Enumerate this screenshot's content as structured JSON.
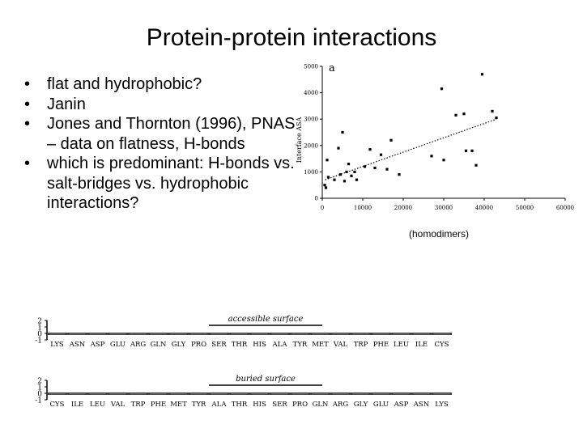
{
  "title": "Protein-protein interactions",
  "bullets": [
    {
      "text": "flat and hydrophobic?"
    },
    {
      "text": "Janin"
    },
    {
      "text": "Jones and Thornton (1996), PNAS – data on flatness, H-bonds"
    },
    {
      "text": "which is predominant: H-bonds vs. salt-bridges vs. hydrophobic interactions?"
    }
  ],
  "bullet_char": "•",
  "scatter": {
    "panel_label": "a",
    "caption": "(homodimers)"
  },
  "chart_data": [
    {
      "type": "scatter",
      "ylabel": "Interface ASA",
      "xlabel": "",
      "xlim": [
        0,
        60000
      ],
      "ylim": [
        0,
        5000
      ],
      "xticks": [
        "0",
        "10000",
        "20000",
        "30000",
        "40000",
        "50000",
        "60000"
      ],
      "yticks": [
        "0",
        "1000",
        "2000",
        "3000",
        "4000",
        "5000"
      ],
      "points": [
        {
          "x": 600,
          "y": 500
        },
        {
          "x": 900,
          "y": 400
        },
        {
          "x": 1200,
          "y": 1450
        },
        {
          "x": 1500,
          "y": 800
        },
        {
          "x": 3000,
          "y": 700
        },
        {
          "x": 4000,
          "y": 1900
        },
        {
          "x": 4500,
          "y": 900
        },
        {
          "x": 5000,
          "y": 2500
        },
        {
          "x": 5500,
          "y": 650
        },
        {
          "x": 6000,
          "y": 1000
        },
        {
          "x": 6500,
          "y": 1300
        },
        {
          "x": 7200,
          "y": 850
        },
        {
          "x": 8000,
          "y": 1000
        },
        {
          "x": 8500,
          "y": 700
        },
        {
          "x": 10500,
          "y": 1200
        },
        {
          "x": 11800,
          "y": 1850
        },
        {
          "x": 13000,
          "y": 1150
        },
        {
          "x": 14500,
          "y": 1650
        },
        {
          "x": 16000,
          "y": 1100
        },
        {
          "x": 17000,
          "y": 2200
        },
        {
          "x": 19000,
          "y": 900
        },
        {
          "x": 27000,
          "y": 1600
        },
        {
          "x": 29500,
          "y": 4150
        },
        {
          "x": 30000,
          "y": 1450
        },
        {
          "x": 33000,
          "y": 3150
        },
        {
          "x": 35000,
          "y": 3200
        },
        {
          "x": 35500,
          "y": 1800
        },
        {
          "x": 37000,
          "y": 1800
        },
        {
          "x": 38000,
          "y": 1250
        },
        {
          "x": 39500,
          "y": 4700
        },
        {
          "x": 42000,
          "y": 3300
        },
        {
          "x": 43000,
          "y": 3050
        }
      ],
      "trendline": {
        "x": [
          700,
          43000
        ],
        "y": [
          700,
          3000
        ],
        "style": "dotted"
      }
    },
    {
      "type": "bar",
      "title": "accessible surface",
      "ylim": [
        -1,
        2
      ],
      "yticks": [
        "2",
        "1",
        "0",
        "-1"
      ],
      "categories": [
        "LYS",
        "ASN",
        "ASP",
        "GLU",
        "ARG",
        "GLN",
        "GLY",
        "PRO",
        "SER",
        "THR",
        "HIS",
        "ALA",
        "TYR",
        "MET",
        "VAL",
        "TRP",
        "PHE",
        "LEU",
        "ILE",
        "CYS"
      ],
      "values": [
        -0.2,
        -0.2,
        -0.2,
        -0.2,
        -0.2,
        -0.2,
        -0.2,
        -0.2,
        -0.2,
        -0.2,
        -0.2,
        -0.2,
        -0.2,
        -0.2,
        -0.2,
        -0.2,
        -0.2,
        -0.2,
        -0.2,
        -0.2
      ]
    },
    {
      "type": "bar",
      "title": "buried surface",
      "ylim": [
        -1,
        2
      ],
      "yticks": [
        "2",
        "1",
        "0",
        "-1"
      ],
      "categories": [
        "CYS",
        "ILE",
        "LEU",
        "VAL",
        "TRP",
        "PHE",
        "MET",
        "TYR",
        "ALA",
        "THR",
        "HIS",
        "SER",
        "PRO",
        "GLN",
        "ARG",
        "GLY",
        "GLU",
        "ASP",
        "ASN",
        "LYS"
      ],
      "values": [
        -0.2,
        -0.2,
        -0.2,
        -0.2,
        -0.2,
        -0.2,
        -0.2,
        -0.2,
        -0.2,
        -0.2,
        -0.2,
        -0.2,
        -0.2,
        -0.2,
        -0.2,
        -0.2,
        -0.2,
        -0.2,
        -0.2,
        -0.2
      ]
    }
  ]
}
